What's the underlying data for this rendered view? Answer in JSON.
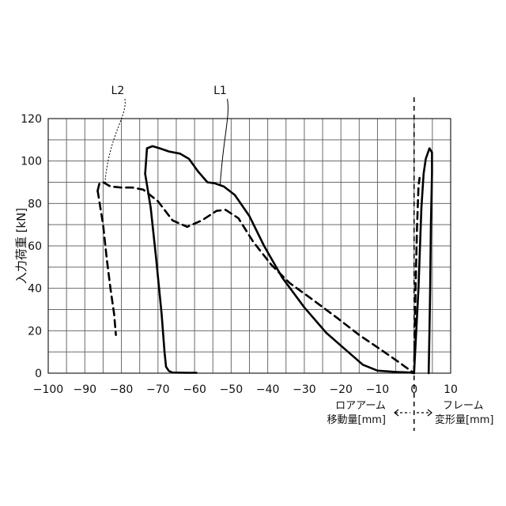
{
  "chart_data": {
    "type": "line",
    "ylabel": "入力荷重 [kN]",
    "xlim": [
      -100,
      10
    ],
    "ylim": [
      0,
      120
    ],
    "x_ticks": [
      -100,
      -90,
      -80,
      -70,
      -60,
      -50,
      -40,
      -30,
      -20,
      -10,
      0,
      10
    ],
    "x_tick_labels": [
      "−100",
      "−90",
      "−80",
      "−70",
      "−60",
      "−50",
      "−40",
      "−30",
      "−20",
      "−10",
      "0",
      "10"
    ],
    "y_ticks": [
      0,
      20,
      40,
      60,
      80,
      100,
      120
    ],
    "y_tick_labels": [
      "0",
      "20",
      "40",
      "60",
      "80",
      "100",
      "120"
    ],
    "grid": true,
    "reference_line_x": 0,
    "region_labels": {
      "left_line1": "ロアアーム",
      "left_line2": "移動量[mm]",
      "right_line1": "フレーム",
      "right_line2": "変形量[mm]"
    },
    "series": [
      {
        "name": "L1",
        "style": "solid",
        "color": "#000000",
        "points": [
          [
            -73.5,
            94
          ],
          [
            -73,
            106
          ],
          [
            -71.5,
            107
          ],
          [
            -69.5,
            106
          ],
          [
            -67,
            104.5
          ],
          [
            -64,
            103.5
          ],
          [
            -61.5,
            101
          ],
          [
            -59,
            95
          ],
          [
            -56.5,
            90
          ],
          [
            -54.5,
            89.5
          ],
          [
            -52,
            88
          ],
          [
            -49,
            84
          ],
          [
            -45,
            74
          ],
          [
            -41,
            60
          ],
          [
            -36,
            45
          ],
          [
            -30,
            31
          ],
          [
            -24,
            19
          ],
          [
            -18,
            10
          ],
          [
            -14,
            4
          ],
          [
            -10,
            1.2
          ],
          [
            -5,
            0.6
          ],
          [
            -1,
            0.3
          ],
          [
            0,
            0
          ]
        ]
      },
      {
        "name": "",
        "style": "solid",
        "color": "#000000",
        "points": [
          [
            -73.5,
            94
          ],
          [
            -72,
            78
          ],
          [
            -70.5,
            54
          ],
          [
            -69,
            28
          ],
          [
            -68.2,
            10
          ],
          [
            -67.8,
            3
          ],
          [
            -67,
            1
          ],
          [
            -66,
            0.3
          ],
          [
            -62,
            0.2
          ],
          [
            -59.5,
            0.2
          ]
        ]
      },
      {
        "name": "L2",
        "style": "dashed",
        "color": "#000000",
        "points": [
          [
            -86.5,
            86
          ],
          [
            -86,
            89.5
          ],
          [
            -85,
            90
          ],
          [
            -83,
            88
          ],
          [
            -80,
            87.5
          ],
          [
            -77,
            87.5
          ],
          [
            -74,
            86.5
          ],
          [
            -70,
            81
          ],
          [
            -66,
            72
          ],
          [
            -62,
            69
          ],
          [
            -58,
            72
          ],
          [
            -54,
            76.5
          ],
          [
            -51.5,
            77
          ],
          [
            -48,
            73
          ],
          [
            -44,
            62
          ],
          [
            -39,
            51
          ],
          [
            -34,
            42.5
          ],
          [
            -28,
            35
          ],
          [
            -21,
            26
          ],
          [
            -15,
            18
          ],
          [
            -9,
            11
          ],
          [
            -4,
            5
          ],
          [
            0,
            0
          ]
        ]
      },
      {
        "name": "",
        "style": "dashed",
        "color": "#000000",
        "points": [
          [
            -86.5,
            86
          ],
          [
            -85,
            70
          ],
          [
            -84,
            54
          ],
          [
            -83,
            40
          ],
          [
            -82,
            28
          ],
          [
            -81.5,
            18
          ]
        ]
      },
      {
        "name": "",
        "style": "solid",
        "color": "#000000",
        "points": [
          [
            0,
            0
          ],
          [
            1.2,
            40
          ],
          [
            2,
            78
          ],
          [
            2.6,
            94
          ],
          [
            3.2,
            101
          ],
          [
            4.2,
            106
          ],
          [
            4.9,
            104
          ],
          [
            4.9,
            94
          ],
          [
            4.6,
            70
          ],
          [
            4.4,
            40
          ],
          [
            4.2,
            20
          ],
          [
            4,
            0
          ]
        ]
      },
      {
        "name": "",
        "style": "dashed",
        "color": "#000000",
        "points": [
          [
            0,
            0
          ],
          [
            0.4,
            40
          ],
          [
            0.8,
            68
          ],
          [
            1.2,
            88
          ],
          [
            1.5,
            92
          ]
        ]
      }
    ],
    "callouts": [
      {
        "label": "L1",
        "anchor": [
          -53,
          89
        ],
        "text_at": [
          -53,
          131.5
        ]
      },
      {
        "label": "L2",
        "anchor": [
          -84.5,
          89
        ],
        "text_at": [
          -81,
          131.5
        ]
      }
    ]
  }
}
